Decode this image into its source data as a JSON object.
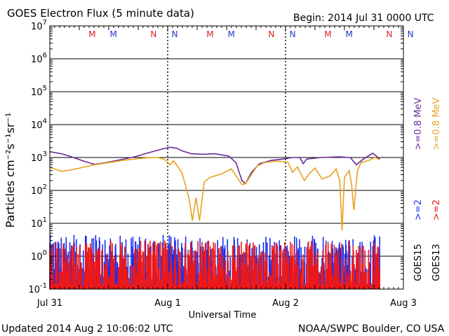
{
  "header": {
    "title": "GOES Electron Flux (5 minute data)",
    "begin": "Begin: 2014 Jul 31 0000 UTC"
  },
  "footer": {
    "updated": "Updated 2014 Aug  2 10:06:02 UTC",
    "credit": "NOAA/SWPC Boulder, CO USA"
  },
  "chart_data": {
    "type": "line",
    "ylabel": "Particles cm⁻²s⁻¹sr⁻¹",
    "xlabel": "Universal Time",
    "y_scale": "log",
    "ylim": [
      0.1,
      10000000
    ],
    "y_ticks": [
      {
        "base": "10",
        "exp": "-1"
      },
      {
        "base": "10",
        "exp": "0"
      },
      {
        "base": "10",
        "exp": "1"
      },
      {
        "base": "10",
        "exp": "2"
      },
      {
        "base": "10",
        "exp": "3"
      },
      {
        "base": "10",
        "exp": "4"
      },
      {
        "base": "10",
        "exp": "5"
      },
      {
        "base": "10",
        "exp": "6"
      },
      {
        "base": "10",
        "exp": "7"
      }
    ],
    "xlim_days": [
      0,
      3
    ],
    "x_ticks": [
      "Jul 31",
      "Aug 1",
      "Aug 2",
      "Aug 3"
    ],
    "threshold": 1000,
    "grid": true,
    "markers": [
      {
        "label": "M",
        "day": 0.36,
        "color": "#dd2222"
      },
      {
        "label": "M",
        "day": 0.54,
        "color": "#2233cc"
      },
      {
        "label": "N",
        "day": 0.88,
        "color": "#dd2222"
      },
      {
        "label": "N",
        "day": 1.06,
        "color": "#2233cc"
      },
      {
        "label": "M",
        "day": 1.36,
        "color": "#dd2222"
      },
      {
        "label": "M",
        "day": 1.54,
        "color": "#2233cc"
      },
      {
        "label": "N",
        "day": 1.88,
        "color": "#dd2222"
      },
      {
        "label": "N",
        "day": 2.06,
        "color": "#2233cc"
      },
      {
        "label": "M",
        "day": 2.36,
        "color": "#dd2222"
      },
      {
        "label": "M",
        "day": 2.54,
        "color": "#2233cc"
      },
      {
        "label": "N",
        "day": 2.88,
        "color": "#dd2222"
      },
      {
        "label": "N",
        "day": 3.06,
        "color": "#2233cc"
      }
    ],
    "right_labels": [
      {
        "text": "GOES15",
        "color": "#000000"
      },
      {
        "text": "GOES13",
        "color": "#000000"
      }
    ],
    "series": [
      {
        "name": ">=0.8 MeV",
        "color": "#6a2a9a",
        "points": [
          [
            0.0,
            1500
          ],
          [
            0.1,
            1300
          ],
          [
            0.2,
            1000
          ],
          [
            0.3,
            750
          ],
          [
            0.38,
            620
          ],
          [
            0.48,
            700
          ],
          [
            0.6,
            860
          ],
          [
            0.72,
            1050
          ],
          [
            0.84,
            1400
          ],
          [
            0.95,
            1800
          ],
          [
            1.02,
            2050
          ],
          [
            1.08,
            1900
          ],
          [
            1.12,
            1600
          ],
          [
            1.2,
            1300
          ],
          [
            1.3,
            1250
          ],
          [
            1.4,
            1300
          ],
          [
            1.52,
            1100
          ],
          [
            1.58,
            700
          ],
          [
            1.63,
            200
          ],
          [
            1.66,
            160
          ],
          [
            1.71,
            350
          ],
          [
            1.78,
            650
          ],
          [
            1.88,
            820
          ],
          [
            1.98,
            900
          ],
          [
            2.06,
            1000
          ],
          [
            2.12,
            1000
          ],
          [
            2.15,
            650
          ],
          [
            2.18,
            900
          ],
          [
            2.3,
            1000
          ],
          [
            2.45,
            1050
          ],
          [
            2.55,
            1000
          ],
          [
            2.6,
            600
          ],
          [
            2.66,
            900
          ],
          [
            2.74,
            1350
          ],
          [
            2.8,
            900
          ]
        ]
      },
      {
        "name": ">=0.8 MeV",
        "color": "#e8a020",
        "points": [
          [
            0.0,
            500
          ],
          [
            0.1,
            380
          ],
          [
            0.18,
            420
          ],
          [
            0.28,
            500
          ],
          [
            0.38,
            600
          ],
          [
            0.5,
            700
          ],
          [
            0.62,
            820
          ],
          [
            0.72,
            900
          ],
          [
            0.82,
            980
          ],
          [
            0.92,
            1000
          ],
          [
            0.98,
            850
          ],
          [
            1.02,
            600
          ],
          [
            1.05,
            800
          ],
          [
            1.12,
            350
          ],
          [
            1.18,
            60
          ],
          [
            1.21,
            12
          ],
          [
            1.24,
            60
          ],
          [
            1.27,
            12
          ],
          [
            1.31,
            180
          ],
          [
            1.36,
            250
          ],
          [
            1.46,
            320
          ],
          [
            1.54,
            450
          ],
          [
            1.58,
            280
          ],
          [
            1.63,
            150
          ],
          [
            1.66,
            160
          ],
          [
            1.71,
            300
          ],
          [
            1.76,
            550
          ],
          [
            1.82,
            700
          ],
          [
            1.92,
            780
          ],
          [
            2.02,
            720
          ],
          [
            2.06,
            350
          ],
          [
            2.1,
            520
          ],
          [
            2.16,
            200
          ],
          [
            2.2,
            320
          ],
          [
            2.25,
            480
          ],
          [
            2.31,
            220
          ],
          [
            2.38,
            280
          ],
          [
            2.43,
            450
          ],
          [
            2.46,
            200
          ],
          [
            2.48,
            6
          ],
          [
            2.5,
            250
          ],
          [
            2.54,
            400
          ],
          [
            2.56,
            150
          ],
          [
            2.58,
            25
          ],
          [
            2.61,
            400
          ],
          [
            2.64,
            700
          ],
          [
            2.7,
            800
          ],
          [
            2.76,
            1000
          ],
          [
            2.8,
            850
          ]
        ]
      }
    ],
    "noise_series": [
      {
        "name": ">=2 MeV",
        "goes": "GOES15",
        "color": "#1a30ee",
        "low": 0.1,
        "high": 4.5
      },
      {
        "name": ">=2 MeV",
        "goes": "GOES13",
        "color": "#ee1818",
        "low": 0.1,
        "high": 3.0
      }
    ],
    "data_end_day": 2.8
  },
  "legend_texts": [
    {
      "text": ">=0.8 MeV",
      "color": "#6a2a9a"
    },
    {
      "text": ">=0.8 MeV",
      "color": "#e8a020"
    },
    {
      "text": ">=2",
      "color": "#1a30ee"
    },
    {
      "text": ">=2",
      "color": "#ee1818"
    }
  ]
}
